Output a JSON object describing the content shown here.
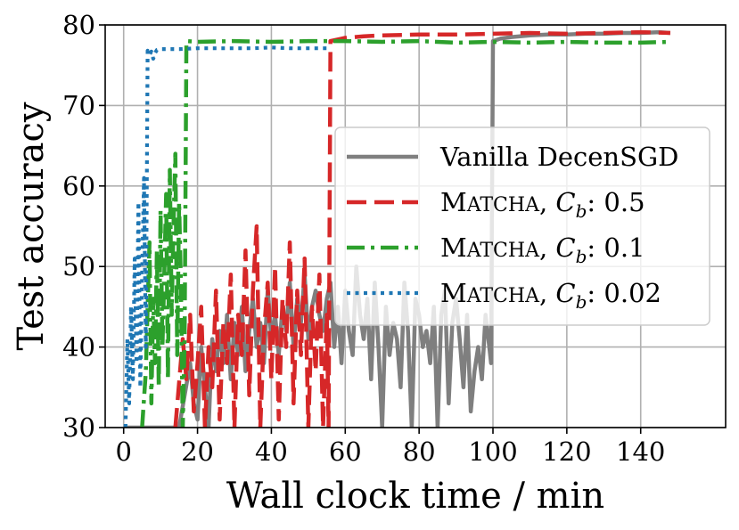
{
  "chart_data": {
    "type": "line",
    "xlabel": "Wall clock time / min",
    "ylabel": "Test accuracy",
    "xlim": [
      -5,
      163
    ],
    "ylim": [
      30,
      80
    ],
    "xticks": [
      0,
      20,
      40,
      60,
      80,
      100,
      120,
      140
    ],
    "yticks": [
      30,
      40,
      50,
      60,
      70,
      80
    ],
    "grid": true,
    "legend_position": "center-right",
    "series": [
      {
        "name": "Vanilla DecenSGD",
        "name_parts": {
          "main": "Vanilla DecenSGD"
        },
        "color": "#7f7f7f",
        "style": "solid",
        "x": [
          1,
          3,
          6,
          9,
          12,
          15,
          18,
          19,
          20,
          21,
          22,
          23,
          24,
          25,
          26,
          27,
          28,
          29,
          30,
          31,
          32,
          33,
          34,
          35,
          36,
          37,
          38,
          39,
          40,
          41,
          42,
          43,
          44,
          45,
          46,
          47,
          48,
          49,
          50,
          51,
          52,
          53,
          54,
          55,
          56,
          57,
          58,
          59,
          60,
          61,
          62,
          63,
          64,
          65,
          66,
          67,
          68,
          69,
          70,
          71,
          72,
          73,
          74,
          75,
          76,
          77,
          78,
          79,
          80,
          81,
          82,
          83,
          84,
          85,
          86,
          87,
          88,
          89,
          90,
          91,
          92,
          93,
          94,
          95,
          96,
          97,
          98,
          99,
          99.5,
          100,
          102,
          105,
          110,
          115,
          120,
          125,
          130,
          135,
          140,
          145,
          148
        ],
        "y": [
          30,
          30,
          30,
          30,
          30,
          30,
          38,
          33,
          31,
          40,
          35,
          30,
          41,
          37,
          42,
          38,
          44,
          36,
          43,
          39,
          45,
          37,
          42,
          46,
          40,
          43,
          38,
          47,
          41,
          44,
          39,
          45,
          42,
          48,
          40,
          46,
          43,
          49,
          41,
          45,
          47,
          44,
          42,
          46,
          48,
          40,
          45,
          38,
          47,
          42,
          39,
          50,
          44,
          41,
          46,
          36,
          48,
          40,
          30,
          45,
          39,
          43,
          41,
          35,
          48,
          42,
          30,
          46,
          44,
          40,
          42,
          38,
          45,
          30,
          44,
          47,
          33,
          43,
          46,
          41,
          35,
          44,
          32,
          37,
          40,
          36,
          44,
          40,
          38,
          78,
          78.3,
          78.5,
          78.7,
          78.8,
          78.8,
          78.9,
          78.9,
          79,
          79,
          79.1,
          79
        ]
      },
      {
        "name": "MATCHA, C_b: 0.5",
        "name_parts": {
          "cap": "M",
          "small": "ATCHA",
          "comma": ", ",
          "c": "C",
          "sub": "b",
          "val": ": 0.5"
        },
        "color": "#d62728",
        "style": "dashed",
        "x": [
          14,
          16,
          17,
          18,
          19,
          20,
          21,
          22,
          23,
          24,
          25,
          26,
          27,
          28,
          29,
          30,
          31,
          32,
          33,
          34,
          35,
          36,
          37,
          38,
          39,
          40,
          41,
          42,
          43,
          44,
          45,
          46,
          47,
          48,
          49,
          50,
          51,
          52,
          53,
          54,
          55,
          55.5,
          56,
          60,
          65,
          70,
          80,
          90,
          100,
          110,
          120,
          130,
          140,
          148
        ],
        "y": [
          30,
          41,
          36,
          44,
          32,
          38,
          45,
          30,
          40,
          35,
          47,
          31,
          43,
          38,
          49,
          30,
          44,
          39,
          52,
          34,
          47,
          55,
          30,
          42,
          48,
          36,
          50,
          31,
          46,
          40,
          53,
          33,
          47,
          39,
          51,
          30,
          45,
          37,
          49,
          30,
          44,
          30,
          78,
          78.4,
          78.6,
          78.7,
          78.8,
          78.8,
          78.9,
          79,
          78.9,
          79,
          79.1,
          79
        ]
      },
      {
        "name": "MATCHA, C_b: 0.1",
        "name_parts": {
          "cap": "M",
          "small": "ATCHA",
          "comma": ", ",
          "c": "C",
          "sub": "b",
          "val": ": 0.1"
        },
        "color": "#2ca02c",
        "style": "dashdot",
        "x": [
          5,
          6,
          7,
          7.5,
          8,
          8.5,
          9,
          9.5,
          10,
          10.5,
          11,
          11.5,
          12,
          12.5,
          13,
          13.5,
          14,
          14.5,
          15,
          15.5,
          16,
          16.5,
          17,
          20,
          30,
          40,
          50,
          60,
          70,
          80,
          90,
          100,
          110,
          120,
          130,
          140,
          148
        ],
        "y": [
          30,
          37,
          53,
          33,
          46,
          38,
          52,
          35,
          57,
          40,
          49,
          59,
          36,
          62,
          44,
          55,
          64,
          39,
          58,
          48,
          30,
          41,
          78,
          77.9,
          78,
          77.9,
          78,
          78,
          77.9,
          78,
          77.8,
          77.9,
          77.8,
          77.9,
          77.8,
          77.8,
          77.9
        ]
      },
      {
        "name": "MATCHA, C_b: 0.02",
        "name_parts": {
          "cap": "M",
          "small": "ATCHA",
          "comma": ", ",
          "c": "C",
          "sub": "b",
          "val": ": 0.02"
        },
        "color": "#1f77b4",
        "style": "dotted",
        "x": [
          0.5,
          1,
          1.5,
          2,
          2.5,
          3,
          3.5,
          4,
          4.5,
          5,
          5.5,
          6,
          6.5,
          7,
          7.5,
          8,
          8.5,
          9,
          10,
          15,
          20,
          25,
          30,
          35,
          40,
          45,
          50,
          55
        ],
        "y": [
          30,
          41,
          33,
          45,
          36,
          51,
          38,
          58,
          35,
          49,
          61,
          40,
          76.8,
          76.3,
          76.7,
          75.8,
          76.5,
          76.9,
          77,
          77,
          77.1,
          77.1,
          77.1,
          77.1,
          77.2,
          77.1,
          77.1,
          77.1
        ]
      }
    ]
  }
}
